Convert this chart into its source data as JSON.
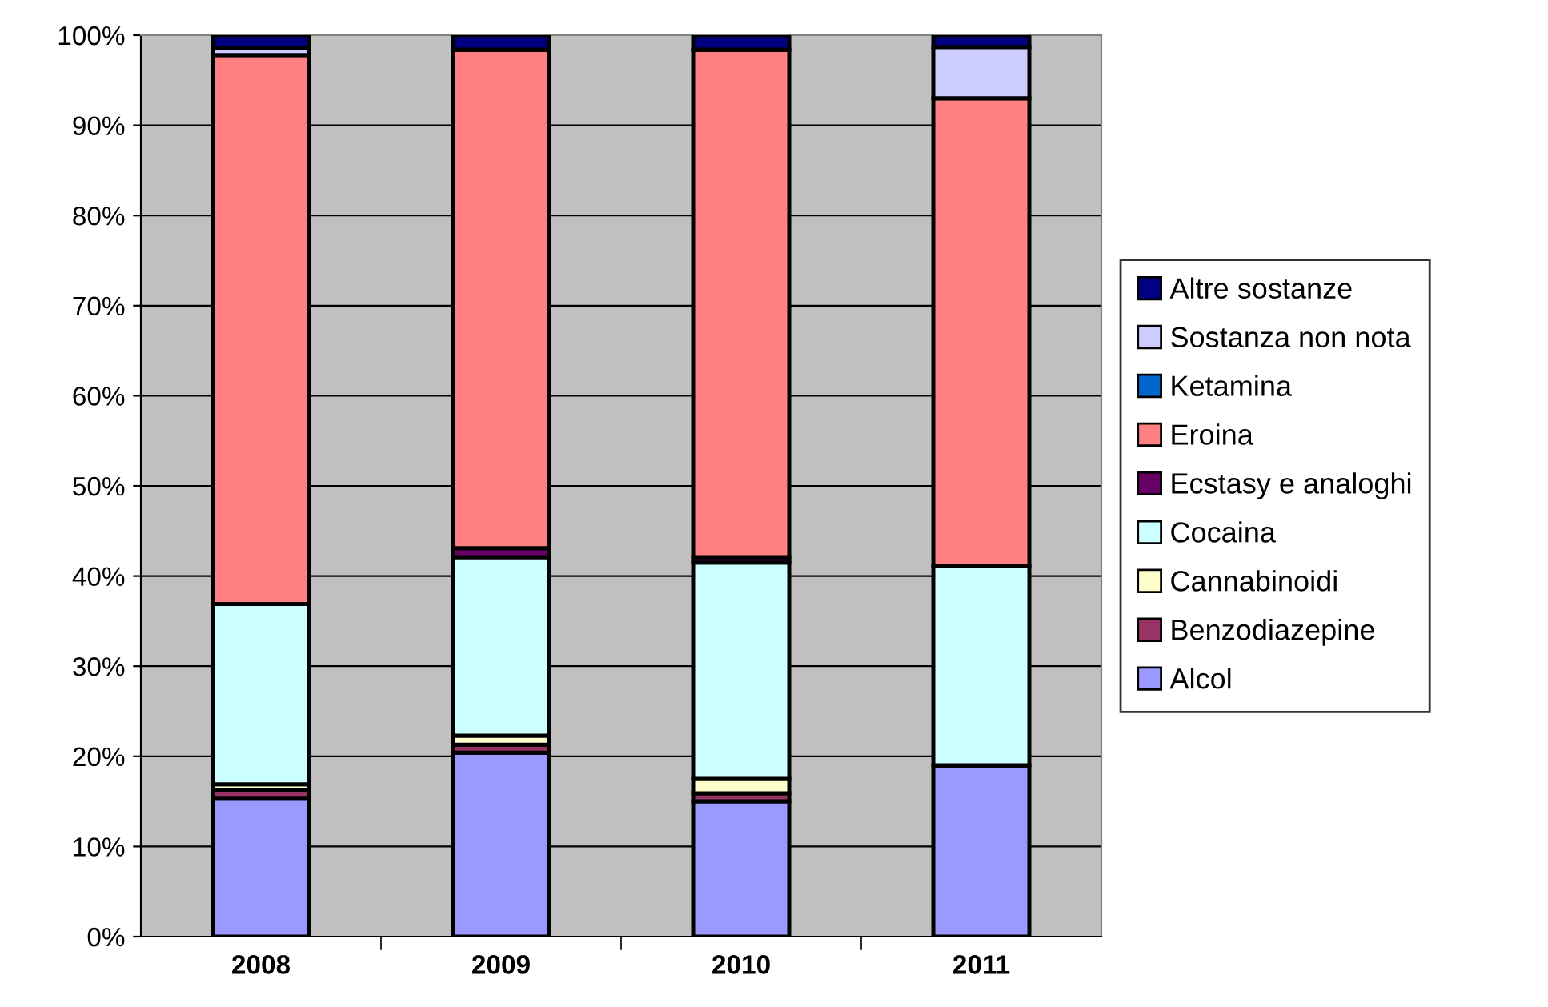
{
  "chart_data": {
    "type": "bar",
    "stacked": true,
    "categories": [
      "2008",
      "2009",
      "2010",
      "2011"
    ],
    "series": [
      {
        "name": "Alcol",
        "color": "#9999ff",
        "values": [
          15.3,
          20.4,
          15.0,
          19.0
        ]
      },
      {
        "name": "Benzodiazepine",
        "color": "#993366",
        "values": [
          0.9,
          0.9,
          0.9,
          null
        ]
      },
      {
        "name": "Cannabinoidi",
        "color": "#ffffcc",
        "values": [
          0.7,
          1.0,
          1.6,
          null
        ]
      },
      {
        "name": "Cocaina",
        "color": "#ccffff",
        "values": [
          20.0,
          19.8,
          24.0,
          22.1
        ]
      },
      {
        "name": "Ecstasy e analoghi",
        "color": "#660066",
        "values": [
          null,
          1.0,
          0.6,
          null
        ]
      },
      {
        "name": "Eroina",
        "color": "#ff8080",
        "values": [
          60.9,
          55.3,
          56.3,
          51.9
        ]
      },
      {
        "name": "Ketamina",
        "color": "#0066cc",
        "values": [
          null,
          null,
          null,
          null
        ]
      },
      {
        "name": "Sostanza non nota",
        "color": "#ccccff",
        "values": [
          0.8,
          null,
          null,
          5.7
        ]
      },
      {
        "name": "Altre sostanze",
        "color": "#000080",
        "values": [
          1.4,
          1.6,
          1.6,
          1.3
        ]
      }
    ],
    "ylim": [
      0,
      100
    ],
    "yticks": [
      {
        "value": 0,
        "label": "0%"
      },
      {
        "value": 10,
        "label": "10%"
      },
      {
        "value": 20,
        "label": "20%"
      },
      {
        "value": 30,
        "label": "30%"
      },
      {
        "value": 40,
        "label": "40%"
      },
      {
        "value": 50,
        "label": "50%"
      },
      {
        "value": 60,
        "label": "60%"
      },
      {
        "value": 70,
        "label": "70%"
      },
      {
        "value": 80,
        "label": "80%"
      },
      {
        "value": 90,
        "label": "90%"
      },
      {
        "value": 100,
        "label": "100%"
      }
    ],
    "grid": "y",
    "legend": "right"
  }
}
